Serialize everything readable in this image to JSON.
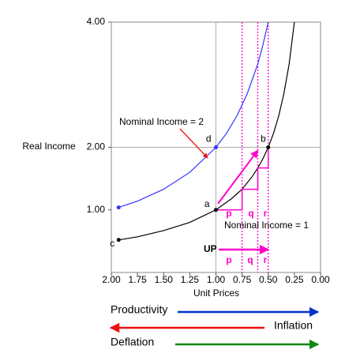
{
  "chart_data": {
    "type": "line",
    "x_label": "Unit Prices",
    "y_label": "Real Income",
    "xlim": [
      2,
      0
    ],
    "ylim": [
      0,
      4
    ],
    "xticks": [
      {
        "value": 2,
        "label": "2.00"
      },
      {
        "value": 1.75,
        "label": "1.75"
      },
      {
        "value": 1.5,
        "label": "1.50"
      },
      {
        "value": 1.25,
        "label": "1.25"
      },
      {
        "value": 1,
        "label": "1.00"
      },
      {
        "value": 0.75,
        "label": "0.75"
      },
      {
        "value": 0.5,
        "label": "0.50"
      },
      {
        "value": 0.25,
        "label": "0.25"
      },
      {
        "value": 0,
        "label": "0.00"
      }
    ],
    "yticks": [
      {
        "value": 1,
        "label": "1.00"
      },
      {
        "value": 2,
        "label": "2.00"
      },
      {
        "value": 4,
        "label": "4.00"
      }
    ],
    "reference_lines": {
      "x": [
        1
      ],
      "y": [
        2
      ]
    },
    "series": [
      {
        "name": "Nominal Income = 1",
        "color": "#000000",
        "x": [
          1.93,
          1.75,
          1.5,
          1.25,
          1,
          0.85,
          0.75,
          0.65,
          0.6,
          0.55,
          0.5,
          0.45,
          0.4,
          0.35,
          0.3,
          0.25
        ],
        "values": [
          0.52,
          0.57,
          0.67,
          0.8,
          1,
          1.18,
          1.33,
          1.54,
          1.67,
          1.82,
          2,
          2.22,
          2.5,
          2.86,
          3.33,
          4
        ]
      },
      {
        "name": "Nominal Income = 2",
        "color": "#3333ff",
        "x": [
          1.93,
          1.75,
          1.5,
          1.25,
          1,
          0.9,
          0.8,
          0.7,
          0.6,
          0.55,
          0.5
        ],
        "values": [
          1.04,
          1.14,
          1.33,
          1.6,
          2,
          2.22,
          2.5,
          2.86,
          3.33,
          3.64,
          4
        ]
      },
      {
        "color": "#ff00cc",
        "x": [
          1,
          0.75,
          0.75,
          0.6,
          0.6,
          0.5,
          0.5
        ],
        "values": [
          1,
          1,
          1.33,
          1.33,
          1.67,
          1.67,
          2
        ]
      }
    ],
    "shift": {
      "color": "#ff00cc",
      "x": [
        0.98,
        0.6
      ],
      "values": [
        1.1,
        1.95
      ]
    },
    "dotted_x": [
      0.75,
      0.6,
      0.5
    ],
    "point_labels": [
      "a",
      "b",
      "c",
      "d"
    ],
    "step_labels": [
      "p",
      "q",
      "r"
    ],
    "up_label": "UP",
    "arrows": [
      {
        "label": "Productivity",
        "color": "#0033cc"
      },
      {
        "label": "Inflation",
        "color": "#ee1111"
      },
      {
        "label": "Deflation",
        "color": "#118811"
      }
    ]
  }
}
